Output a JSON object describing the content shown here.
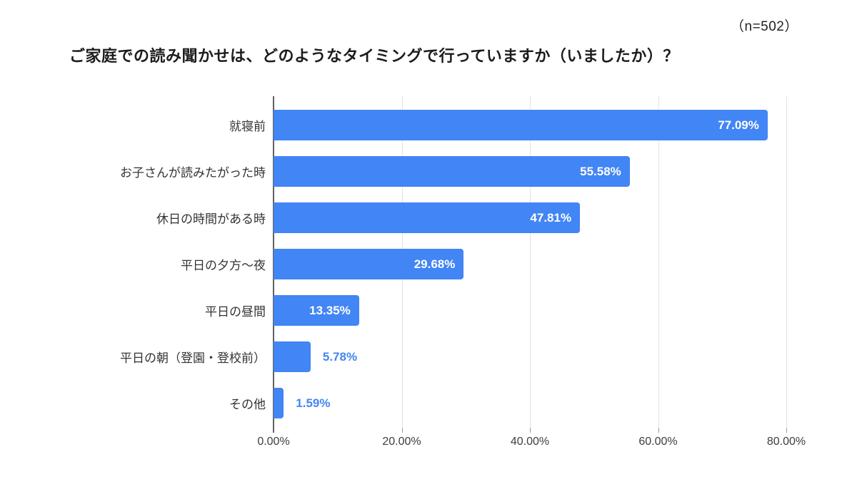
{
  "header": {
    "sample_label": "（n=502）",
    "title": "ご家庭での読み聞かせは、どのようなタイミングで行っていますか（いましたか）？"
  },
  "chart_data": {
    "type": "bar",
    "orientation": "horizontal",
    "title": "ご家庭での読み聞かせは、どのようなタイミングで行っていますか（いましたか）？",
    "annotation": "（n=502）",
    "categories": [
      "就寝前",
      "お子さんが読みたがった時",
      "休日の時間がある時",
      "平日の夕方〜夜",
      "平日の昼間",
      "平日の朝（登園・登校前）",
      "その他"
    ],
    "values": [
      77.09,
      55.58,
      47.81,
      29.68,
      13.35,
      5.78,
      1.59
    ],
    "value_labels": [
      "77.09%",
      "55.58%",
      "47.81%",
      "29.68%",
      "13.35%",
      "5.78%",
      "1.59%"
    ],
    "label_placement": [
      "inside",
      "inside",
      "inside",
      "inside",
      "inside",
      "outside",
      "outside"
    ],
    "x_ticks": [
      {
        "value": 0,
        "label": "0.00%"
      },
      {
        "value": 20,
        "label": "20.00%"
      },
      {
        "value": 40,
        "label": "40.00%"
      },
      {
        "value": 60,
        "label": "60.00%"
      },
      {
        "value": 80,
        "label": "80.00%"
      }
    ],
    "xlim": [
      0,
      80
    ],
    "grid": true,
    "legend": "none",
    "colors": {
      "bar": "#4285F4",
      "value_inside": "#FFFFFF",
      "value_outside": "#4285F4",
      "gridline": "#E3E3E3",
      "axis_line": "#616161",
      "category_text": "#333333",
      "tick_text": "#3D3D3D",
      "title_text": "#1C1C1C"
    }
  }
}
